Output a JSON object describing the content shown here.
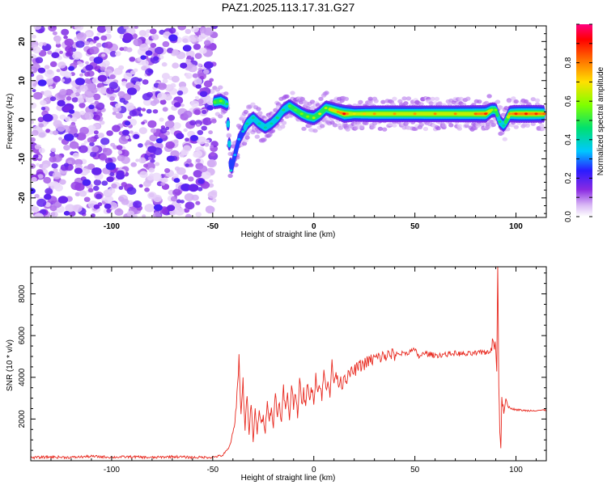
{
  "chart_data": [
    {
      "type": "heatmap",
      "title": "PAZ1.2025.113.17.31.G27",
      "xlabel": "Height of straight line (km)",
      "ylabel": "Frequency (Hz)",
      "xlim": [
        -140,
        115
      ],
      "ylim": [
        -25,
        24
      ],
      "x_ticks": [
        "-100",
        "-50",
        "0",
        "50",
        "100"
      ],
      "y_ticks": [
        "20",
        "10",
        "0",
        "-10",
        "-20"
      ],
      "colorbar": {
        "label": "Normalized spectral amplitude",
        "range": [
          0,
          1
        ],
        "ticks": [
          "0.0",
          "0.2",
          "0.4",
          "0.6",
          "0.8"
        ],
        "colors": [
          "#ffffff",
          "#d9b8f5",
          "#8a2be2",
          "#2a1cff",
          "#00c8ff",
          "#00e070",
          "#7fff00",
          "#ffe000",
          "#ff6a00",
          "#ff0000",
          "#ff0080"
        ]
      },
      "noise_region": {
        "x_range": [
          -140,
          -49
        ],
        "freq_range": [
          -25,
          24
        ],
        "amplitude": "low"
      },
      "ridge": [
        {
          "x": -49,
          "f": 4.5,
          "a": 0.45
        },
        {
          "x": -46,
          "f": 4.8,
          "a": 0.5
        },
        {
          "x": -43,
          "f": 4.0,
          "a": 0.4
        },
        {
          "x": -41,
          "f": -13,
          "a": 0.3
        },
        {
          "x": -39,
          "f": -9,
          "a": 0.25
        },
        {
          "x": -37,
          "f": -5,
          "a": 0.25
        },
        {
          "x": -35,
          "f": -3,
          "a": 0.3
        },
        {
          "x": -33,
          "f": -1,
          "a": 0.35
        },
        {
          "x": -30,
          "f": 0.5,
          "a": 0.35
        },
        {
          "x": -27,
          "f": -1,
          "a": 0.35
        },
        {
          "x": -24,
          "f": -2,
          "a": 0.35
        },
        {
          "x": -21,
          "f": -1,
          "a": 0.35
        },
        {
          "x": -18,
          "f": 0.5,
          "a": 0.4
        },
        {
          "x": -15,
          "f": 2.5,
          "a": 0.4
        },
        {
          "x": -12,
          "f": 3.5,
          "a": 0.45
        },
        {
          "x": -9,
          "f": 2.5,
          "a": 0.45
        },
        {
          "x": -6,
          "f": 1.5,
          "a": 0.5
        },
        {
          "x": -3,
          "f": 0.8,
          "a": 0.5
        },
        {
          "x": 0,
          "f": 0.5,
          "a": 0.55
        },
        {
          "x": 3,
          "f": 1.5,
          "a": 0.6
        },
        {
          "x": 6,
          "f": 3.0,
          "a": 0.55
        },
        {
          "x": 9,
          "f": 2.5,
          "a": 0.65
        },
        {
          "x": 12,
          "f": 2.0,
          "a": 0.7
        },
        {
          "x": 15,
          "f": 1.5,
          "a": 0.85
        },
        {
          "x": 20,
          "f": 1.5,
          "a": 0.6
        },
        {
          "x": 25,
          "f": 1.5,
          "a": 0.65
        },
        {
          "x": 30,
          "f": 1.5,
          "a": 0.7
        },
        {
          "x": 40,
          "f": 1.5,
          "a": 0.7
        },
        {
          "x": 50,
          "f": 1.5,
          "a": 0.7
        },
        {
          "x": 60,
          "f": 1.5,
          "a": 0.72
        },
        {
          "x": 70,
          "f": 1.5,
          "a": 0.72
        },
        {
          "x": 80,
          "f": 1.5,
          "a": 0.75
        },
        {
          "x": 85,
          "f": 1.5,
          "a": 0.8
        },
        {
          "x": 88,
          "f": 2.5,
          "a": 0.55
        },
        {
          "x": 90,
          "f": 2.5,
          "a": 0.5
        },
        {
          "x": 92,
          "f": -0.5,
          "a": 0.4
        },
        {
          "x": 94,
          "f": -1.5,
          "a": 0.35
        },
        {
          "x": 97,
          "f": 1.5,
          "a": 0.7
        },
        {
          "x": 100,
          "f": 1.5,
          "a": 0.8
        },
        {
          "x": 105,
          "f": 1.5,
          "a": 0.82
        },
        {
          "x": 110,
          "f": 1.5,
          "a": 0.8
        },
        {
          "x": 114,
          "f": 1.5,
          "a": 0.75
        }
      ]
    },
    {
      "type": "line",
      "xlabel": "Height of straight line (km)",
      "ylabel": "SNR (10 * v/v)",
      "xlim": [
        -140,
        115
      ],
      "ylim": [
        0,
        9300
      ],
      "x_ticks": [
        "-100",
        "-50",
        "0",
        "50",
        "100"
      ],
      "y_ticks": [
        "2000",
        "4000",
        "6000",
        "8000"
      ],
      "line_color": "#e8281e",
      "series": [
        {
          "x": [
            -140,
            -130,
            -120,
            -110,
            -100,
            -90,
            -80,
            -70,
            -60,
            -50,
            -45,
            -42,
            -40,
            -39,
            -38,
            -37,
            -36,
            -35,
            -34,
            -33,
            -32,
            -31,
            -30,
            -29,
            -28,
            -27,
            -26,
            -25,
            -24,
            -23,
            -22,
            -21,
            -20,
            -19,
            -18,
            -17,
            -16,
            -15,
            -14,
            -13,
            -12,
            -11,
            -10,
            -9,
            -8,
            -7,
            -6,
            -5,
            -4,
            -3,
            -2,
            -1,
            0,
            1,
            2,
            3,
            4,
            5,
            6,
            7,
            8,
            9,
            10,
            11,
            12,
            13,
            14,
            15,
            16,
            18,
            20,
            22,
            25,
            28,
            30,
            35,
            40,
            45,
            48,
            50,
            52,
            55,
            60,
            65,
            70,
            75,
            80,
            85,
            88,
            89,
            90,
            90.5,
            91,
            91.5,
            92,
            92.5,
            93,
            94,
            95,
            96,
            98,
            100,
            105,
            110,
            115
          ],
          "y": [
            150,
            180,
            160,
            210,
            170,
            190,
            150,
            200,
            160,
            170,
            260,
            600,
            1300,
            1800,
            3200,
            4900,
            2200,
            3800,
            1500,
            3300,
            1200,
            2800,
            900,
            2400,
            1300,
            2500,
            1700,
            2100,
            1400,
            3000,
            1900,
            2600,
            1600,
            3300,
            2100,
            2900,
            1800,
            3500,
            2400,
            3100,
            2000,
            3700,
            2600,
            3400,
            2200,
            3800,
            2700,
            3300,
            2500,
            3900,
            2900,
            3500,
            2900,
            4100,
            3300,
            3700,
            3000,
            4300,
            3400,
            4000,
            3200,
            4600,
            3700,
            4300,
            3600,
            4000,
            3500,
            4200,
            3900,
            4200,
            4300,
            4500,
            4650,
            4800,
            4900,
            5000,
            5100,
            5150,
            5250,
            5300,
            5000,
            5150,
            5050,
            5100,
            5150,
            5100,
            5150,
            5200,
            5300,
            5900,
            5300,
            4500,
            9300,
            3800,
            1500,
            600,
            2900,
            2300,
            3000,
            2600,
            2500,
            2450,
            2400,
            2420,
            2420
          ]
        }
      ]
    }
  ]
}
